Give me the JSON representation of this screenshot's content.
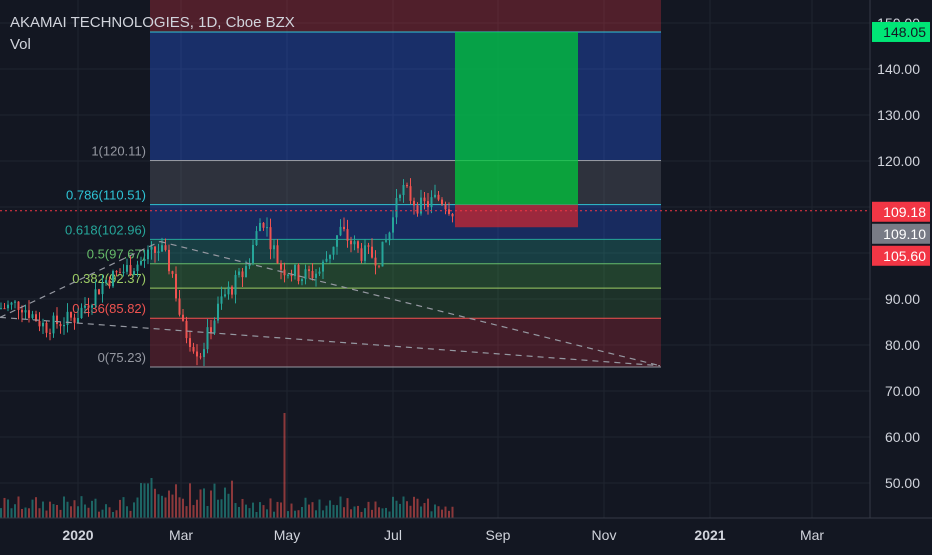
{
  "legend": {
    "title": "AKAMAI TECHNOLOGIES, 1D, Cboe BZX",
    "vol": "Vol"
  },
  "chart_data": {
    "type": "candlestick",
    "title": "AKAMAI TECHNOLOGIES, 1D, Cboe BZX",
    "xlabel": "",
    "ylabel": "",
    "x_ticks": [
      "2020",
      "Mar",
      "May",
      "Jul",
      "Sep",
      "Nov",
      "2021",
      "Mar"
    ],
    "y_ticks": [
      "50.00",
      "60.00",
      "70.00",
      "80.00",
      "90.00",
      "100.00",
      "110.00",
      "120.00",
      "130.00",
      "140.00",
      "150.00"
    ],
    "ylim": [
      42,
      158
    ],
    "grid": true,
    "price_badges": [
      {
        "value": "148.05",
        "color": "#00e676",
        "text_color": "#131722"
      },
      {
        "value": "109.18",
        "color": "#f23645",
        "text_color": "#ffffff"
      },
      {
        "value": "109.10",
        "color": "#787b86",
        "text_color": "#ffffff"
      },
      {
        "value": "105.60",
        "color": "#f23645",
        "text_color": "#ffffff"
      }
    ],
    "fib_levels": [
      {
        "label": "0.786(110.51)",
        "value": 110.51,
        "color": "#2ec4d6"
      },
      {
        "label": "0.618(102.96)",
        "value": 102.96,
        "color": "#26a69a"
      },
      {
        "label": "0.5(97.67)",
        "value": 97.67,
        "color": "#66bb6a"
      },
      {
        "label": "0.382(92.37)",
        "value": 92.37,
        "color": "#9ccc65"
      },
      {
        "label": "0.236(85.82)",
        "value": 85.82,
        "color": "#ef5350"
      },
      {
        "label": "0(75.23)",
        "value": 75.23,
        "color": "#9598a1"
      },
      {
        "label": "1(120.11)",
        "value": 120.11,
        "color": "#9598a1"
      }
    ],
    "long_position": {
      "entry": 110.51,
      "target": 148.05,
      "stop": 105.6
    },
    "last_price": 109.18,
    "colors": {
      "up": "#26a69a",
      "down": "#ef5350",
      "background": "#131722"
    }
  }
}
